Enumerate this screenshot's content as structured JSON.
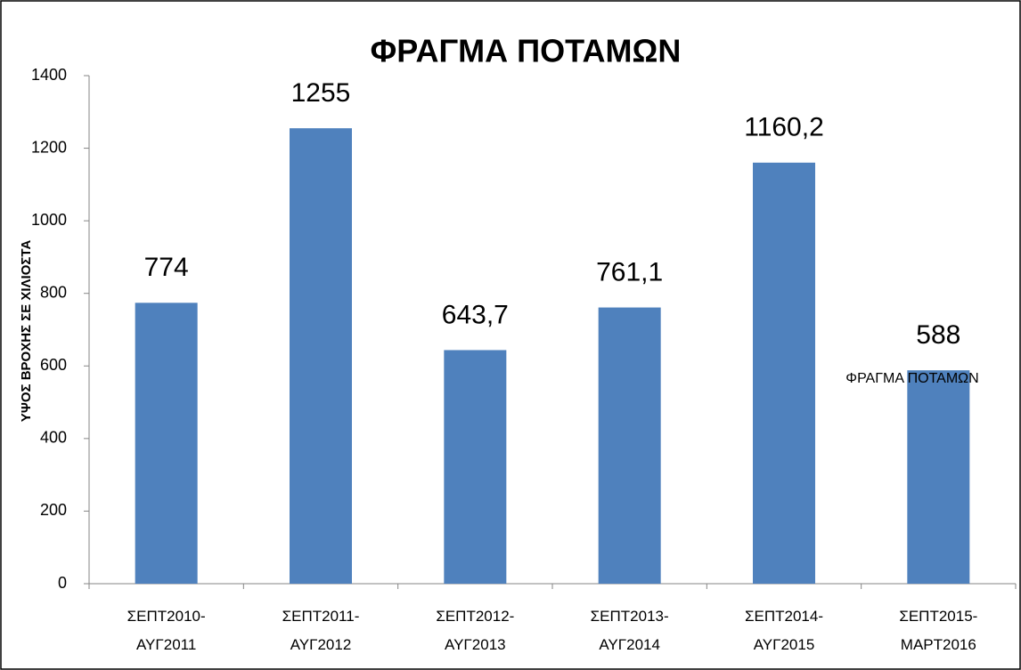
{
  "chart_data": {
    "type": "bar",
    "title": "ΦΡΑΓΜΑ ΠΟΤΑΜΩΝ",
    "y_label": "ΥΨΟΣ ΒΡΟΧΗΣ ΣΕ ΧΙΛΙΟΣΤΑ",
    "categories": [
      "ΣΕΠΤ2010-ΑΥΓ2011",
      "ΣΕΠΤ2011-ΑΥΓ2012",
      "ΣΕΠΤ2012-ΑΥΓ2013",
      "ΣΕΠΤ2013-ΑΥΓ2014",
      "ΣΕΠΤ2014-ΑΥΓ2015",
      "ΣΕΠΤ2015-ΜΑΡΤ2016"
    ],
    "series": [
      {
        "name": "ΦΡΑΓΜΑ ΠΟΤΑΜΩΝ",
        "color": "#4f81bd",
        "values": [
          774,
          1255,
          643.7,
          761.1,
          1160.2,
          588
        ],
        "value_labels": [
          "774",
          "1255",
          "643,7",
          "761,1",
          "1160,2",
          "588"
        ]
      }
    ],
    "ylim": [
      0,
      1400
    ],
    "yticks": [
      0,
      200,
      400,
      600,
      800,
      1000,
      1200,
      1400
    ],
    "grid": false
  }
}
